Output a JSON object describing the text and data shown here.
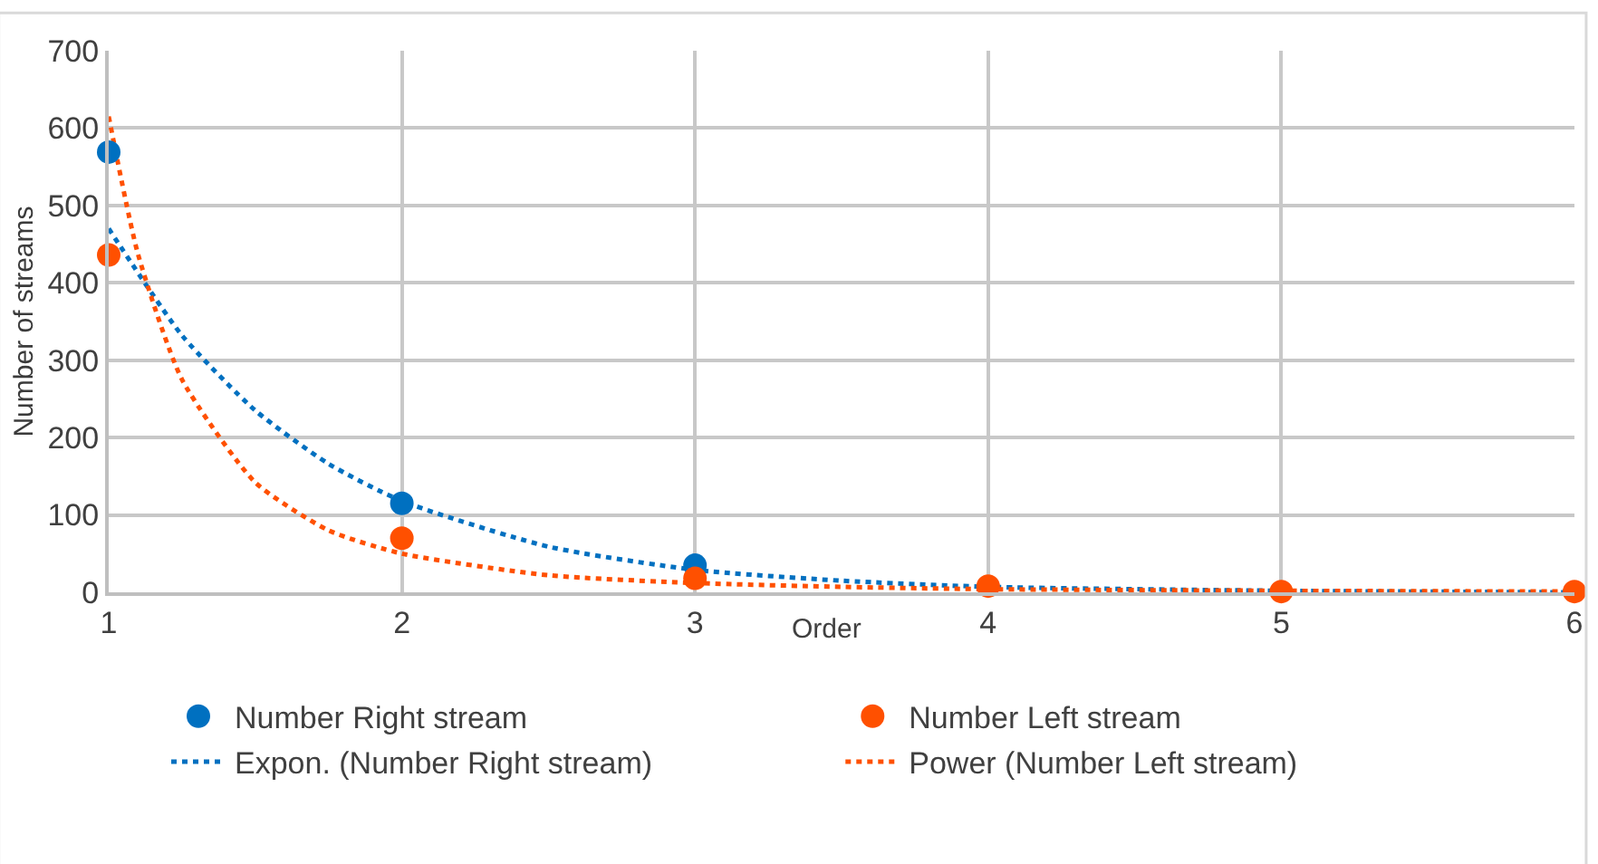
{
  "chart_data": {
    "type": "scatter",
    "xlabel": "Order",
    "ylabel": "Number of streams",
    "xlim": [
      1,
      6
    ],
    "xticks": [
      1,
      2,
      3,
      4,
      5,
      6
    ],
    "ylim": [
      0,
      700
    ],
    "yticks": [
      0,
      100,
      200,
      300,
      400,
      500,
      600,
      700
    ],
    "grid": true,
    "legend": "bottom",
    "marker": "circle",
    "series": [
      {
        "name": "Number Right stream",
        "color": "#0070c0",
        "x": [
          1,
          2,
          3
        ],
        "values": [
          569,
          115,
          35
        ]
      },
      {
        "name": "Number Left stream",
        "color": "#ff5000",
        "x": [
          1,
          2,
          3,
          4,
          5,
          6
        ],
        "values": [
          436,
          70,
          18,
          8,
          1,
          1
        ]
      },
      {
        "name": "Expon. (Number Right stream)",
        "type": "line",
        "marker": "none",
        "line_style": "dotted",
        "color": "#0070c0",
        "x": [
          1,
          1.25,
          1.5,
          1.75,
          2,
          2.5,
          3,
          3.5,
          4,
          5,
          6
        ],
        "values": [
          470,
          332,
          235,
          166,
          118,
          59,
          29,
          15,
          7,
          2,
          0
        ]
      },
      {
        "name": "Power (Number Left stream)",
        "type": "line",
        "marker": "none",
        "line_style": "dotted",
        "color": "#ff5000",
        "x": [
          1,
          1.1,
          1.25,
          1.5,
          1.75,
          2,
          2.5,
          3,
          3.5,
          4,
          5,
          6
        ],
        "values": [
          615,
          437,
          275,
          142,
          80,
          50,
          22,
          12,
          7,
          4,
          2,
          1
        ]
      }
    ]
  }
}
